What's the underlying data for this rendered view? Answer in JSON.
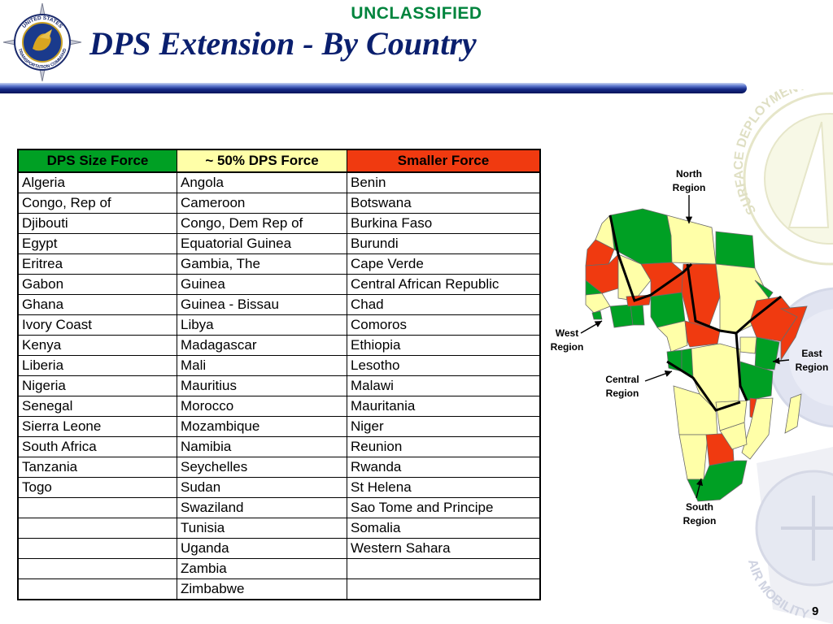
{
  "classification": "UNCLASSIFIED",
  "title": "DPS Extension - By Country",
  "page_number": "9",
  "colors": {
    "dps_size": "#00a024",
    "half_dps": "#ffffa8",
    "smaller": "#f03a10",
    "title": "#0a1f6e",
    "classification": "#00843d"
  },
  "table": {
    "headers": [
      "DPS Size Force",
      "~ 50% DPS Force",
      "Smaller Force"
    ],
    "rows": [
      [
        "Algeria",
        "Angola",
        "Benin"
      ],
      [
        "Congo, Rep of",
        "Cameroon",
        "Botswana"
      ],
      [
        "Djibouti",
        "Congo, Dem Rep of",
        "Burkina Faso"
      ],
      [
        "Egypt",
        "Equatorial Guinea",
        "Burundi"
      ],
      [
        "Eritrea",
        "Gambia, The",
        "Cape Verde"
      ],
      [
        "Gabon",
        "Guinea",
        "Central African Republic"
      ],
      [
        "Ghana",
        "Guinea - Bissau",
        "Chad"
      ],
      [
        "Ivory Coast",
        "Libya",
        "Comoros"
      ],
      [
        "Kenya",
        "Madagascar",
        "Ethiopia"
      ],
      [
        "Liberia",
        "Mali",
        "Lesotho"
      ],
      [
        "Nigeria",
        "Mauritius",
        "Malawi"
      ],
      [
        "Senegal",
        "Morocco",
        "Mauritania"
      ],
      [
        "Sierra Leone",
        "Mozambique",
        "Niger"
      ],
      [
        "South Africa",
        "Namibia",
        "Reunion"
      ],
      [
        "Tanzania",
        "Seychelles",
        "Rwanda"
      ],
      [
        "Togo",
        "Sudan",
        "St Helena"
      ],
      [
        "",
        "Swaziland",
        "Sao Tome and Principe"
      ],
      [
        "",
        "Tunisia",
        "Somalia"
      ],
      [
        "",
        "Uganda",
        "Western Sahara"
      ],
      [
        "",
        "Zambia",
        ""
      ],
      [
        "",
        "Zimbabwe",
        ""
      ]
    ]
  },
  "map": {
    "regions": {
      "north_1": "North",
      "north_2": "Region",
      "west_1": "West",
      "west_2": "Region",
      "central_1": "Central",
      "central_2": "Region",
      "east_1": "East",
      "east_2": "Region",
      "south_1": "South",
      "south_2": "Region"
    }
  },
  "logos": {
    "seal_top": "UNITED STATES",
    "seal_bottom": "TRANSPORTATION COMMAND",
    "sddc_text": "SURFACE DEPLOYMENT · MILITARY",
    "ama_text": "AIR MOBILITY"
  }
}
